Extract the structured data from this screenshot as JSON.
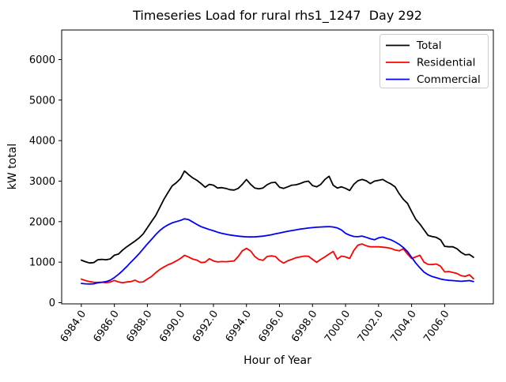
{
  "chart_data": {
    "type": "line",
    "title": "Timeseries Load for rural rhs1_1247  Day 292",
    "xlabel": "Hour of Year",
    "ylabel": "kW total",
    "xlim": [
      6982.81,
      7008.95
    ],
    "ylim": [
      0,
      6730
    ],
    "grid": false,
    "legend_position": "upper right",
    "xticks": [
      6984.0,
      6986.0,
      6988.0,
      6990.0,
      6992.0,
      6994.0,
      6996.0,
      6998.0,
      7000.0,
      7002.0,
      7004.0,
      7006.0
    ],
    "xtick_labels": [
      "6984.0",
      "6986.0",
      "6988.0",
      "6990.0",
      "6992.0",
      "6994.0",
      "6996.0",
      "6998.0",
      "7000.0",
      "7002.0",
      "7004.0",
      "7006.0"
    ],
    "yticks": [
      0,
      1000,
      2000,
      3000,
      4000,
      5000,
      6000
    ],
    "ytick_labels": [
      "0",
      "1000",
      "2000",
      "3000",
      "4000",
      "5000",
      "6000"
    ],
    "x_start": 6984.0,
    "x_step": 0.25,
    "series": [
      {
        "name": "Total",
        "color": "#000000",
        "values": [
          1050,
          1010,
          980,
          990,
          1060,
          1070,
          1060,
          1080,
          1170,
          1200,
          1300,
          1380,
          1450,
          1520,
          1600,
          1700,
          1850,
          2000,
          2150,
          2350,
          2550,
          2720,
          2880,
          2960,
          3060,
          3250,
          3160,
          3080,
          3020,
          2940,
          2850,
          2920,
          2900,
          2830,
          2840,
          2820,
          2790,
          2780,
          2820,
          2920,
          3040,
          2920,
          2830,
          2810,
          2830,
          2910,
          2960,
          2970,
          2850,
          2820,
          2860,
          2900,
          2910,
          2940,
          2980,
          3000,
          2890,
          2860,
          2920,
          3040,
          3120,
          2900,
          2830,
          2860,
          2820,
          2770,
          2920,
          3010,
          3040,
          3010,
          2940,
          3000,
          3020,
          3040,
          2980,
          2930,
          2860,
          2690,
          2550,
          2450,
          2250,
          2060,
          1940,
          1800,
          1660,
          1630,
          1610,
          1550,
          1390,
          1380,
          1380,
          1330,
          1240,
          1180,
          1190,
          1120
        ]
      },
      {
        "name": "Residential",
        "color": "#ff0000",
        "values": [
          580,
          545,
          520,
          505,
          500,
          505,
          495,
          510,
          550,
          510,
          490,
          510,
          520,
          555,
          505,
          515,
          585,
          645,
          740,
          820,
          880,
          935,
          975,
          1030,
          1090,
          1170,
          1125,
          1075,
          1050,
          990,
          1000,
          1085,
          1030,
          1005,
          1015,
          1010,
          1020,
          1030,
          1140,
          1280,
          1340,
          1275,
          1140,
          1065,
          1045,
          1140,
          1155,
          1140,
          1040,
          975,
          1035,
          1070,
          1110,
          1130,
          1150,
          1145,
          1070,
          995,
          1070,
          1130,
          1200,
          1265,
          1075,
          1150,
          1130,
          1090,
          1290,
          1420,
          1450,
          1405,
          1380,
          1380,
          1380,
          1370,
          1360,
          1340,
          1300,
          1280,
          1330,
          1200,
          1090,
          1130,
          1170,
          1000,
          945,
          940,
          955,
          900,
          760,
          770,
          745,
          720,
          665,
          650,
          690,
          590
        ]
      },
      {
        "name": "Commercial",
        "color": "#0000ff",
        "values": [
          475,
          465,
          460,
          465,
          490,
          505,
          520,
          555,
          620,
          700,
          790,
          890,
          1000,
          1100,
          1210,
          1330,
          1450,
          1560,
          1680,
          1780,
          1860,
          1920,
          1970,
          2000,
          2030,
          2070,
          2050,
          1990,
          1930,
          1875,
          1840,
          1805,
          1775,
          1740,
          1712,
          1690,
          1672,
          1655,
          1642,
          1632,
          1625,
          1622,
          1625,
          1632,
          1642,
          1658,
          1675,
          1698,
          1720,
          1742,
          1762,
          1780,
          1798,
          1815,
          1830,
          1843,
          1853,
          1862,
          1868,
          1874,
          1878,
          1868,
          1845,
          1795,
          1710,
          1665,
          1635,
          1628,
          1645,
          1612,
          1578,
          1552,
          1600,
          1618,
          1582,
          1550,
          1500,
          1440,
          1360,
          1260,
          1120,
          980,
          860,
          755,
          690,
          645,
          615,
          585,
          565,
          552,
          545,
          535,
          528,
          535,
          545,
          522
        ]
      }
    ]
  }
}
